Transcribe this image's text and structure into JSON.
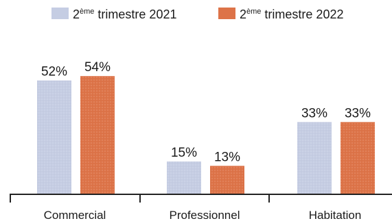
{
  "chart_data": {
    "type": "bar",
    "categories": [
      "Commercial",
      "Professionnel",
      "Habitation"
    ],
    "series": [
      {
        "name_prefix": "2",
        "name_sup": "ème",
        "name_suffix": " trimestre 2021",
        "color": "#c5cde3",
        "values": [
          52,
          15,
          33
        ],
        "labels": [
          "52%",
          "15%",
          "33%"
        ]
      },
      {
        "name_prefix": "2",
        "name_sup": "ème",
        "name_suffix": " trimestre 2022",
        "color": "#dd7348",
        "values": [
          54,
          13,
          33
        ],
        "labels": [
          "54%",
          "13%",
          "33%"
        ]
      }
    ],
    "ylim": [
      0,
      60
    ],
    "legend_position": "top",
    "grid": false
  }
}
